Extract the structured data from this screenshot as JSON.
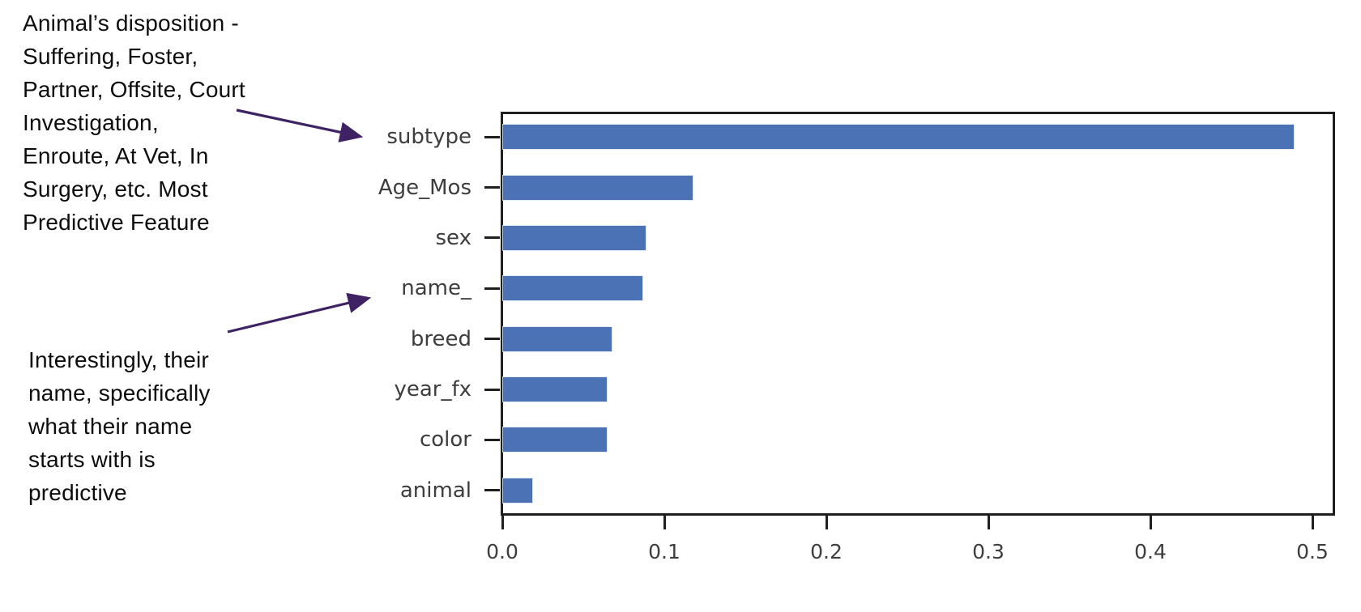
{
  "annotations": {
    "top": {
      "text": "Animal’s disposition -\nSuffering, Foster,\nPartner, Offsite, Court\nInvestigation,\nEnroute, At Vet, In\nSurgery, etc. Most\nPredictive Feature"
    },
    "bottom": {
      "text": "Interestingly, their\nname, specifically\nwhat their name\nstarts with is\npredictive"
    }
  },
  "colors": {
    "bar": "#4a72b4",
    "arrow": "#3f2263",
    "axis": "#1f1f1f",
    "tick_label_text": "#3d3d3d",
    "annotation_text": "#0d0d0d",
    "background": "#ffffff"
  },
  "chart_data": {
    "type": "bar",
    "orientation": "horizontal",
    "title": "",
    "xlabel": "",
    "ylabel": "",
    "categories": [
      "subtype",
      "Age_Mos",
      "sex",
      "name_",
      "breed",
      "year_fx",
      "color",
      "animal"
    ],
    "values": [
      0.488,
      0.117,
      0.088,
      0.086,
      0.067,
      0.064,
      0.064,
      0.018
    ],
    "xlim": [
      0,
      0.512
    ],
    "xticks": [
      0.0,
      0.1,
      0.2,
      0.3,
      0.4,
      0.5
    ],
    "xtick_labels": [
      "0.0",
      "0.1",
      "0.2",
      "0.3",
      "0.4",
      "0.5"
    ],
    "grid": false,
    "legend": null,
    "bar_color": "#4a72b4"
  }
}
